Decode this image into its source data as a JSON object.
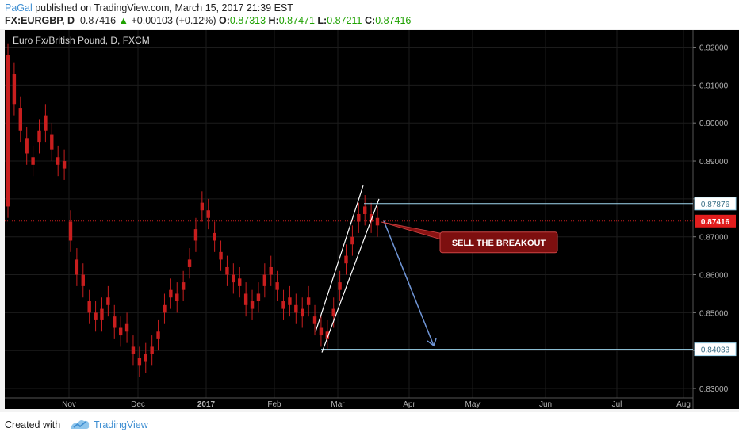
{
  "header": {
    "user": "PaGal",
    "published_text": "published on TradingView.com, March 15, 2017 21:39 EST",
    "symbol": "FX:EURGBP, D",
    "price": "0.87416",
    "change_arrow": "▲",
    "change": "+0.00103 (+0.12%)",
    "open_label": "O:",
    "open": "0.87313",
    "high_label": "H:",
    "high": "0.87471",
    "low_label": "L:",
    "low": "0.87211",
    "close_label": "C:",
    "close": "0.87416"
  },
  "footer": {
    "created_with": "Created with",
    "brand": "TradingView"
  },
  "chart_data": {
    "type": "candlestick",
    "title": "Euro Fx/British Pound, D, FXCM",
    "x_tick_labels": [
      "Nov",
      "Dec",
      "2017",
      "Feb",
      "Mar",
      "Apr",
      "May",
      "Jun",
      "Jul",
      "Aug"
    ],
    "y_tick_labels": [
      "0.92000",
      "0.91000",
      "0.90000",
      "0.89000",
      "0.88000",
      "0.87000",
      "0.86000",
      "0.85000",
      "0.84000",
      "0.83000"
    ],
    "ylim": [
      0.8275,
      0.9245
    ],
    "grid": true,
    "candle_color": "#c81e1e",
    "background": "#000000",
    "price_series_shape": [
      [
        0.878,
        0.918
      ],
      [
        0.905,
        0.913
      ],
      [
        0.898,
        0.904
      ],
      [
        0.892,
        0.896
      ],
      [
        0.889,
        0.891
      ],
      [
        0.895,
        0.898
      ],
      [
        0.898,
        0.902
      ],
      [
        0.893,
        0.897
      ],
      [
        0.889,
        0.891
      ],
      [
        0.888,
        0.89
      ],
      [
        0.869,
        0.874
      ],
      [
        0.86,
        0.864
      ],
      [
        0.857,
        0.86
      ],
      [
        0.85,
        0.853
      ],
      [
        0.848,
        0.85
      ],
      [
        0.848,
        0.851
      ],
      [
        0.852,
        0.854
      ],
      [
        0.846,
        0.849
      ],
      [
        0.844,
        0.846
      ],
      [
        0.845,
        0.847
      ],
      [
        0.839,
        0.841
      ],
      [
        0.836,
        0.838
      ],
      [
        0.837,
        0.839
      ],
      [
        0.839,
        0.841
      ],
      [
        0.843,
        0.845
      ],
      [
        0.85,
        0.852
      ],
      [
        0.854,
        0.856
      ],
      [
        0.853,
        0.855
      ],
      [
        0.856,
        0.858
      ],
      [
        0.862,
        0.864
      ],
      [
        0.869,
        0.872
      ],
      [
        0.877,
        0.879
      ],
      [
        0.875,
        0.877
      ],
      [
        0.869,
        0.871
      ],
      [
        0.864,
        0.866
      ],
      [
        0.86,
        0.862
      ],
      [
        0.858,
        0.86
      ],
      [
        0.857,
        0.859
      ],
      [
        0.852,
        0.855
      ],
      [
        0.851,
        0.853
      ],
      [
        0.853,
        0.855
      ],
      [
        0.857,
        0.86
      ],
      [
        0.86,
        0.862
      ],
      [
        0.856,
        0.858
      ],
      [
        0.851,
        0.853
      ],
      [
        0.852,
        0.854
      ],
      [
        0.85,
        0.852
      ],
      [
        0.849,
        0.851
      ],
      [
        0.852,
        0.854
      ],
      [
        0.847,
        0.849
      ],
      [
        0.844,
        0.846
      ],
      [
        0.843,
        0.845
      ],
      [
        0.849,
        0.851
      ],
      [
        0.856,
        0.858
      ],
      [
        0.863,
        0.865
      ],
      [
        0.868,
        0.87
      ],
      [
        0.874,
        0.876
      ],
      [
        0.876,
        0.878
      ],
      [
        0.874,
        0.876
      ],
      [
        0.873,
        0.875
      ]
    ],
    "price_tag": {
      "value": 0.87416,
      "label": "0.87416"
    },
    "level_lines": [
      {
        "value": 0.87876,
        "label": "0.87876"
      },
      {
        "value": 0.84033,
        "label": "0.84033"
      }
    ],
    "annotation": "SELL THE BREAKOUT"
  }
}
